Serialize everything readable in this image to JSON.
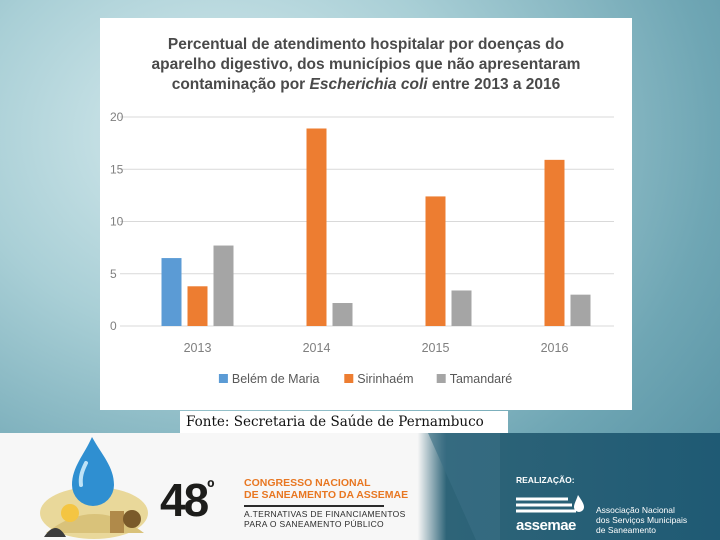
{
  "chart_data": {
    "type": "bar",
    "title_lines": [
      "Percentual de atendimento hospitalar por doenças do",
      "aparelho digestivo, dos municípios que não apresentaram"
    ],
    "title_line3_pre": "contaminação por ",
    "title_line3_italic": "Escherichia coli",
    "title_line3_post": " entre 2013 a 2016",
    "categories": [
      "2013",
      "2014",
      "2015",
      "2016"
    ],
    "series": [
      {
        "name": "Belém de Maria",
        "color": "#5b9bd5",
        "values": [
          6.5,
          null,
          null,
          null
        ]
      },
      {
        "name": "Sirinhaém",
        "color": "#ed7d31",
        "values": [
          3.8,
          18.9,
          12.4,
          15.9
        ]
      },
      {
        "name": "Tamandaré",
        "color": "#a5a5a5",
        "values": [
          7.7,
          2.2,
          3.4,
          3.0
        ]
      }
    ],
    "ylim": [
      0,
      20
    ],
    "yticks": [
      "0",
      "5",
      "10",
      "15",
      "20"
    ],
    "legend_position": "bottom",
    "grid": true
  },
  "source": "Fonte: Secretaria de Saúde de Pernambuco",
  "footer": {
    "congress_number": "48",
    "congress_ordinal": "º",
    "congress_line1": "CONGRESSO NACIONAL",
    "congress_line2": "DE SANEAMENTO DA ASSEMAE",
    "congress_sub1": "A.TERNATIVAS DE FINANCIAMENTOS",
    "congress_sub2": "PARA O SANEAMENTO PÚBLICO",
    "realizacao": "REALIZAÇÃO:",
    "assemae_word": "assemae",
    "assoc_line1": "Associação Nacional",
    "assoc_line2": "dos Serviços Municipais",
    "assoc_line3": "de Saneamento"
  }
}
